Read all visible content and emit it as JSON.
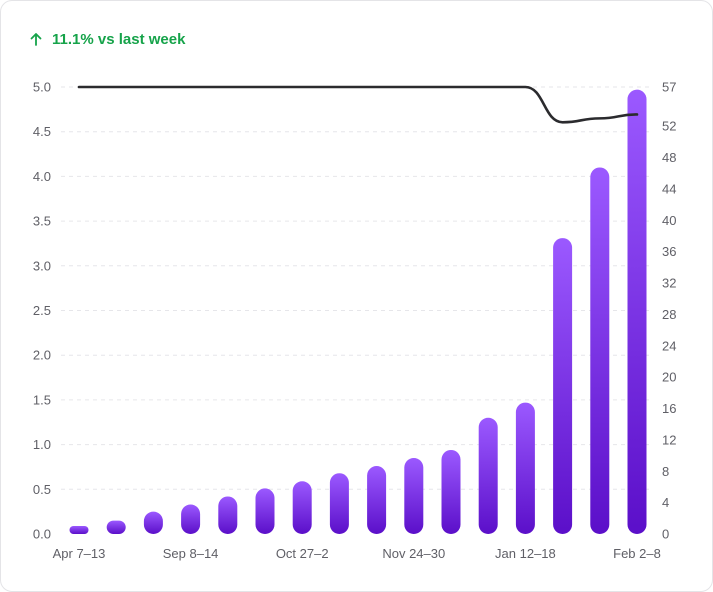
{
  "trend": {
    "icon": "arrow-up-icon",
    "text": "11.1% vs last week",
    "color": "#16a34a"
  },
  "chart_data": {
    "type": "bar",
    "title": "",
    "xlabel": "",
    "ylabel": "",
    "grid": true,
    "x_tick_labels": [
      "Apr 7–13",
      "Sep 8–14",
      "Oct 27–2",
      "Nov 24–30",
      "Jan 12–18",
      "Feb 2–8"
    ],
    "x_tick_positions": [
      0,
      3,
      6,
      9,
      12,
      15
    ],
    "y_left": {
      "ticks": [
        "0.0",
        "0.5",
        "1.0",
        "1.5",
        "2.0",
        "2.5",
        "3.0",
        "3.5",
        "4.0",
        "4.5",
        "5.0"
      ],
      "ylim": [
        0,
        5
      ]
    },
    "y_right": {
      "ticks": [
        "0",
        "4",
        "8",
        "12",
        "16",
        "20",
        "24",
        "28",
        "32",
        "36",
        "40",
        "44",
        "48",
        "52",
        "57"
      ],
      "ylim": [
        0,
        57
      ]
    },
    "series": [
      {
        "type": "bar",
        "axis": "left",
        "color_top": "#9b59ff",
        "color_bottom": "#5b0fc9",
        "values": [
          0.08,
          0.15,
          0.25,
          0.33,
          0.42,
          0.51,
          0.59,
          0.68,
          0.76,
          0.85,
          0.94,
          1.3,
          1.47,
          3.31,
          4.1,
          4.97
        ]
      },
      {
        "type": "line",
        "axis": "right",
        "color": "#2b2b2e",
        "values": [
          57,
          57,
          57,
          57,
          57,
          57,
          57,
          57,
          57,
          57,
          57,
          57,
          57,
          52.5,
          53,
          53.5
        ]
      }
    ]
  }
}
